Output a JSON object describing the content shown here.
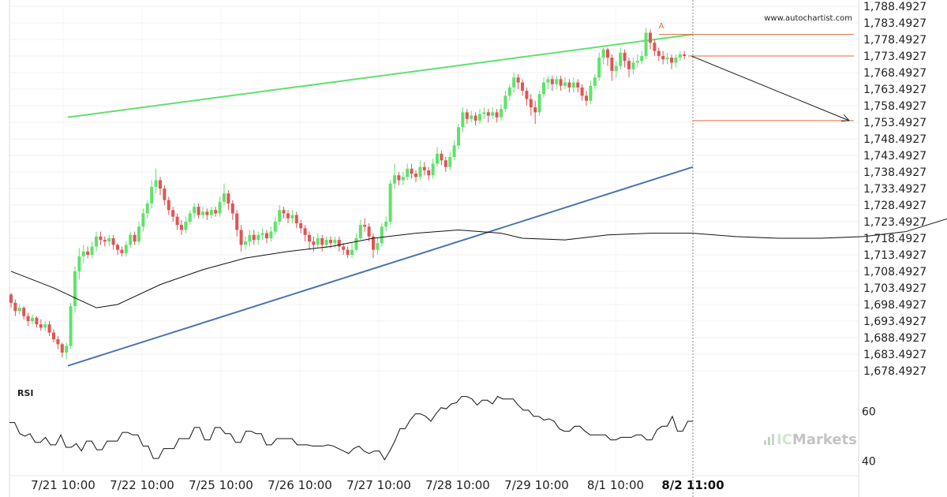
{
  "watermark": "www.autochartist.com",
  "brand": {
    "prefix": "IC",
    "suffix": "Markets"
  },
  "rsi_label": "RSI",
  "chart_data": {
    "type": "candlestick",
    "y_ticks": [
      "1,788.4927",
      "1,783.4927",
      "1,778.4927",
      "1,773.4927",
      "1,768.4927",
      "1,763.4927",
      "1,758.4927",
      "1,753.4927",
      "1,748.4927",
      "1,743.4927",
      "1,738.4927",
      "1,733.4927",
      "1,728.4927",
      "1,723.4927",
      "1,718.4927",
      "1,713.4927",
      "1,708.4927",
      "1,703.4927",
      "1,698.4927",
      "1,693.4927",
      "1,688.4927",
      "1,683.4927",
      "1,678.4927"
    ],
    "ylim": [
      1678.4927,
      1788.4927
    ],
    "x_ticks": [
      "7/21 10:00",
      "7/22 10:00",
      "7/25 10:00",
      "7/26 10:00",
      "7/27 10:00",
      "7/28 10:00",
      "7/29 10:00",
      "8/1 10:00"
    ],
    "x_current": "8/2 11:00",
    "pattern_label": "A",
    "candles": [
      [
        1701.5,
        1699.0,
        1702.0,
        1697.5
      ],
      [
        1699.0,
        1696.5,
        1700.0,
        1695.0
      ],
      [
        1696.5,
        1697.5,
        1698.5,
        1695.5
      ],
      [
        1697.5,
        1695.0,
        1698.0,
        1694.0
      ],
      [
        1695.0,
        1693.5,
        1696.0,
        1692.0
      ],
      [
        1693.5,
        1694.5,
        1695.5,
        1692.5
      ],
      [
        1694.5,
        1692.5,
        1695.0,
        1691.5
      ],
      [
        1692.5,
        1691.5,
        1694.0,
        1690.5
      ],
      [
        1691.5,
        1692.5,
        1693.5,
        1690.5
      ],
      [
        1692.5,
        1690.0,
        1693.5,
        1689.0
      ],
      [
        1690.0,
        1688.0,
        1691.0,
        1687.0
      ],
      [
        1688.0,
        1686.5,
        1689.0,
        1685.0
      ],
      [
        1686.5,
        1684.0,
        1687.0,
        1682.5
      ],
      [
        1684.0,
        1686.0,
        1687.0,
        1682.0
      ],
      [
        1686.0,
        1698.0,
        1699.0,
        1685.0
      ],
      [
        1698.0,
        1708.5,
        1710.0,
        1696.0
      ],
      [
        1708.5,
        1713.0,
        1715.5,
        1706.0
      ],
      [
        1713.0,
        1714.5,
        1716.5,
        1711.0
      ],
      [
        1714.5,
        1713.5,
        1716.0,
        1712.5
      ],
      [
        1713.5,
        1716.0,
        1717.5,
        1712.5
      ],
      [
        1716.0,
        1719.0,
        1720.5,
        1714.5
      ],
      [
        1719.0,
        1718.0,
        1720.5,
        1716.5
      ],
      [
        1718.0,
        1717.5,
        1719.0,
        1716.0
      ],
      [
        1717.5,
        1718.5,
        1719.5,
        1716.0
      ],
      [
        1718.5,
        1716.5,
        1719.5,
        1715.0
      ],
      [
        1716.5,
        1715.0,
        1717.0,
        1713.5
      ],
      [
        1715.0,
        1714.0,
        1716.0,
        1713.0
      ],
      [
        1714.0,
        1716.5,
        1717.5,
        1713.0
      ],
      [
        1716.5,
        1719.5,
        1720.5,
        1715.5
      ],
      [
        1719.5,
        1717.5,
        1720.5,
        1716.5
      ],
      [
        1717.5,
        1722.0,
        1723.5,
        1716.5
      ],
      [
        1722.0,
        1726.0,
        1727.5,
        1720.5
      ],
      [
        1726.0,
        1729.0,
        1730.0,
        1724.5
      ],
      [
        1729.0,
        1734.0,
        1736.0,
        1727.5
      ],
      [
        1734.0,
        1736.0,
        1739.5,
        1732.0
      ],
      [
        1736.0,
        1733.5,
        1737.0,
        1731.5
      ],
      [
        1733.5,
        1730.0,
        1734.5,
        1728.5
      ],
      [
        1730.0,
        1727.0,
        1731.0,
        1725.5
      ],
      [
        1727.0,
        1725.0,
        1728.0,
        1723.5
      ],
      [
        1725.0,
        1722.5,
        1726.0,
        1721.0
      ],
      [
        1722.5,
        1721.0,
        1724.0,
        1719.5
      ],
      [
        1721.0,
        1723.5,
        1725.0,
        1720.0
      ],
      [
        1723.5,
        1726.0,
        1727.0,
        1722.5
      ],
      [
        1726.0,
        1728.0,
        1729.0,
        1724.5
      ],
      [
        1728.0,
        1725.5,
        1729.0,
        1724.5
      ],
      [
        1725.5,
        1726.5,
        1728.0,
        1724.5
      ],
      [
        1726.5,
        1725.5,
        1727.5,
        1724.0
      ],
      [
        1725.5,
        1727.0,
        1728.0,
        1724.5
      ],
      [
        1727.0,
        1726.0,
        1728.0,
        1725.0
      ],
      [
        1726.0,
        1729.5,
        1731.0,
        1725.0
      ],
      [
        1729.5,
        1732.0,
        1735.0,
        1728.5
      ],
      [
        1732.0,
        1729.0,
        1733.0,
        1727.0
      ],
      [
        1729.0,
        1726.0,
        1730.0,
        1724.0
      ],
      [
        1726.0,
        1721.0,
        1727.0,
        1719.0
      ],
      [
        1721.0,
        1716.5,
        1722.5,
        1714.5
      ],
      [
        1716.5,
        1717.5,
        1719.0,
        1715.0
      ],
      [
        1717.5,
        1719.5,
        1721.0,
        1716.0
      ],
      [
        1719.5,
        1718.0,
        1721.0,
        1716.5
      ],
      [
        1718.0,
        1719.5,
        1720.5,
        1716.5
      ],
      [
        1719.5,
        1720.0,
        1721.5,
        1718.0
      ],
      [
        1720.0,
        1718.5,
        1721.0,
        1717.0
      ],
      [
        1718.5,
        1720.5,
        1722.0,
        1717.5
      ],
      [
        1720.5,
        1723.5,
        1725.0,
        1719.5
      ],
      [
        1723.5,
        1727.0,
        1728.5,
        1722.5
      ],
      [
        1727.0,
        1726.0,
        1728.0,
        1724.5
      ],
      [
        1726.0,
        1724.5,
        1727.0,
        1723.0
      ],
      [
        1724.5,
        1725.5,
        1727.0,
        1723.0
      ],
      [
        1725.5,
        1723.0,
        1726.5,
        1721.5
      ],
      [
        1723.0,
        1721.5,
        1724.0,
        1720.0
      ],
      [
        1721.5,
        1719.5,
        1722.5,
        1717.5
      ],
      [
        1719.5,
        1717.5,
        1720.5,
        1715.0
      ],
      [
        1717.5,
        1716.5,
        1719.0,
        1714.5
      ],
      [
        1716.5,
        1718.5,
        1720.0,
        1715.5
      ],
      [
        1718.5,
        1716.5,
        1719.5,
        1714.5
      ],
      [
        1716.5,
        1718.0,
        1719.0,
        1715.5
      ],
      [
        1718.0,
        1717.0,
        1719.0,
        1715.5
      ],
      [
        1717.0,
        1718.0,
        1719.0,
        1715.5
      ],
      [
        1718.0,
        1716.0,
        1719.0,
        1714.5
      ],
      [
        1716.0,
        1715.0,
        1717.0,
        1713.5
      ],
      [
        1715.0,
        1713.5,
        1716.0,
        1712.5
      ],
      [
        1713.5,
        1715.0,
        1717.0,
        1712.5
      ],
      [
        1715.0,
        1718.5,
        1720.0,
        1714.5
      ],
      [
        1718.5,
        1722.5,
        1724.0,
        1718.0
      ],
      [
        1722.5,
        1722.0,
        1724.5,
        1720.5
      ],
      [
        1722.0,
        1719.0,
        1723.0,
        1717.5
      ],
      [
        1719.0,
        1715.0,
        1720.0,
        1712.5
      ],
      [
        1715.0,
        1717.0,
        1718.5,
        1713.5
      ],
      [
        1717.0,
        1722.0,
        1723.0,
        1716.0
      ],
      [
        1722.0,
        1723.5,
        1725.0,
        1720.5
      ],
      [
        1723.5,
        1735.0,
        1736.0,
        1722.5
      ],
      [
        1735.0,
        1737.5,
        1741.0,
        1733.5
      ],
      [
        1737.5,
        1736.0,
        1738.5,
        1734.5
      ],
      [
        1736.0,
        1737.0,
        1738.5,
        1734.5
      ],
      [
        1737.0,
        1739.5,
        1741.0,
        1736.0
      ],
      [
        1739.5,
        1738.0,
        1741.0,
        1736.5
      ],
      [
        1738.0,
        1737.0,
        1739.0,
        1735.5
      ],
      [
        1737.0,
        1740.0,
        1742.0,
        1736.0
      ],
      [
        1740.0,
        1739.0,
        1741.5,
        1737.5
      ],
      [
        1739.0,
        1737.5,
        1740.0,
        1736.0
      ],
      [
        1737.5,
        1741.0,
        1742.5,
        1736.5
      ],
      [
        1741.0,
        1744.0,
        1746.0,
        1740.0
      ],
      [
        1744.0,
        1742.0,
        1745.0,
        1740.5
      ],
      [
        1742.0,
        1740.0,
        1743.0,
        1738.5
      ],
      [
        1740.0,
        1743.0,
        1744.5,
        1739.0
      ],
      [
        1743.0,
        1746.5,
        1748.0,
        1742.0
      ],
      [
        1746.5,
        1752.0,
        1753.0,
        1745.5
      ],
      [
        1752.0,
        1756.5,
        1758.0,
        1750.5
      ],
      [
        1756.5,
        1754.5,
        1757.5,
        1753.0
      ],
      [
        1754.5,
        1755.5,
        1757.0,
        1753.5
      ],
      [
        1755.5,
        1754.0,
        1756.5,
        1752.5
      ],
      [
        1754.0,
        1756.0,
        1757.5,
        1753.0
      ],
      [
        1756.0,
        1756.5,
        1758.0,
        1754.5
      ],
      [
        1756.5,
        1755.5,
        1757.5,
        1753.5
      ],
      [
        1755.5,
        1756.5,
        1758.0,
        1754.5
      ],
      [
        1756.5,
        1755.0,
        1757.5,
        1753.5
      ],
      [
        1755.0,
        1757.5,
        1759.0,
        1754.0
      ],
      [
        1757.5,
        1761.5,
        1763.0,
        1756.5
      ],
      [
        1761.5,
        1764.0,
        1765.0,
        1760.0
      ],
      [
        1764.0,
        1767.0,
        1768.5,
        1762.5
      ],
      [
        1767.0,
        1765.5,
        1768.0,
        1763.5
      ],
      [
        1765.5,
        1763.0,
        1766.5,
        1761.5
      ],
      [
        1763.0,
        1760.5,
        1764.0,
        1758.5
      ],
      [
        1760.5,
        1758.0,
        1762.0,
        1755.5
      ],
      [
        1758.0,
        1756.5,
        1760.0,
        1753.0
      ],
      [
        1756.5,
        1762.0,
        1763.0,
        1755.5
      ],
      [
        1762.0,
        1765.5,
        1767.0,
        1761.0
      ],
      [
        1765.5,
        1766.5,
        1767.5,
        1763.5
      ],
      [
        1766.5,
        1765.0,
        1767.5,
        1763.0
      ],
      [
        1765.0,
        1766.5,
        1767.5,
        1763.5
      ],
      [
        1766.5,
        1764.5,
        1767.5,
        1763.0
      ],
      [
        1764.5,
        1765.5,
        1767.0,
        1763.5
      ],
      [
        1765.5,
        1764.0,
        1766.5,
        1762.5
      ],
      [
        1764.0,
        1765.5,
        1767.0,
        1762.5
      ],
      [
        1765.5,
        1764.0,
        1766.5,
        1762.5
      ],
      [
        1764.0,
        1761.5,
        1765.0,
        1760.0
      ],
      [
        1761.5,
        1760.0,
        1763.0,
        1758.5
      ],
      [
        1760.0,
        1764.5,
        1766.0,
        1759.0
      ],
      [
        1764.5,
        1767.0,
        1768.0,
        1763.5
      ],
      [
        1767.0,
        1773.0,
        1774.5,
        1766.0
      ],
      [
        1773.0,
        1775.5,
        1776.0,
        1771.0
      ],
      [
        1775.5,
        1773.0,
        1776.0,
        1770.5
      ],
      [
        1773.0,
        1769.0,
        1774.0,
        1766.0
      ],
      [
        1769.0,
        1770.5,
        1772.0,
        1767.0
      ],
      [
        1770.5,
        1774.5,
        1776.0,
        1769.5
      ],
      [
        1774.5,
        1772.0,
        1775.5,
        1770.0
      ],
      [
        1772.0,
        1769.5,
        1773.0,
        1767.0
      ],
      [
        1769.5,
        1771.5,
        1773.0,
        1768.0
      ],
      [
        1771.5,
        1772.0,
        1774.0,
        1770.0
      ],
      [
        1772.0,
        1773.5,
        1775.0,
        1771.0
      ],
      [
        1773.5,
        1780.5,
        1782.0,
        1772.5
      ],
      [
        1780.5,
        1777.5,
        1781.5,
        1775.5
      ],
      [
        1777.5,
        1775.0,
        1778.5,
        1773.5
      ],
      [
        1775.0,
        1773.5,
        1776.0,
        1772.0
      ],
      [
        1773.5,
        1772.5,
        1775.0,
        1771.0
      ],
      [
        1772.5,
        1773.0,
        1774.5,
        1771.0
      ],
      [
        1773.0,
        1771.5,
        1774.0,
        1769.5
      ],
      [
        1771.5,
        1773.0,
        1774.0,
        1770.0
      ],
      [
        1773.0,
        1774.0,
        1775.0,
        1772.0
      ],
      [
        1774.0,
        1773.5,
        1775.0,
        1772.5
      ]
    ],
    "moving_average": [
      [
        0,
        1708.5
      ],
      [
        10,
        1703.5
      ],
      [
        20,
        1697.5
      ],
      [
        25,
        1698.5
      ],
      [
        35,
        1704.5
      ],
      [
        45,
        1709.0
      ],
      [
        55,
        1712.5
      ],
      [
        65,
        1714.5
      ],
      [
        75,
        1716.0
      ],
      [
        85,
        1718.5
      ],
      [
        95,
        1720.0
      ],
      [
        105,
        1721.0
      ],
      [
        115,
        1720.0
      ],
      [
        120,
        1718.5
      ],
      [
        130,
        1718.0
      ],
      [
        140,
        1719.5
      ],
      [
        150,
        1720.0
      ],
      [
        160,
        1720.0
      ],
      [
        170,
        1719.0
      ],
      [
        180,
        1718.5
      ],
      [
        190,
        1718.5
      ],
      [
        200,
        1719.0
      ],
      [
        210,
        1720.5
      ],
      [
        220,
        1724.5
      ],
      [
        230,
        1729.5
      ],
      [
        240,
        1734.0
      ],
      [
        250,
        1739.5
      ],
      [
        260,
        1744.5
      ],
      [
        270,
        1749.0
      ],
      [
        280,
        1752.0
      ],
      [
        290,
        1755.0
      ],
      [
        300,
        1757.0
      ],
      [
        310,
        1759.0
      ],
      [
        320,
        1761.0
      ],
      [
        330,
        1762.5
      ],
      [
        340,
        1763.0
      ],
      [
        348,
        1764.0
      ],
      [
        355,
        1766.0
      ],
      [
        365,
        1767.5
      ],
      [
        375,
        1769.5
      ],
      [
        382,
        1770.5
      ]
    ],
    "upper_channel": [
      [
        1755.0,
        1780.0
      ]
    ],
    "lower_channel": [
      [
        1680.0,
        1740.0
      ]
    ],
    "resistance_level": 1780.0,
    "current_level": 1773.5,
    "target_level": 1754.0,
    "rsi": {
      "ticks": [
        "60",
        "40"
      ],
      "ylim": [
        35,
        70
      ],
      "values": [
        55.5,
        55.5,
        51,
        50,
        51,
        47.5,
        47.5,
        49.5,
        46.5,
        46.5,
        50.5,
        45.5,
        45.5,
        47,
        44,
        48,
        48,
        44.5,
        44.5,
        48,
        48,
        48,
        51.5,
        51.5,
        50.5,
        50.5,
        46,
        46,
        41,
        41,
        45,
        45,
        45,
        49,
        49,
        49,
        53.5,
        53.5,
        48.5,
        48.5,
        53.5,
        53.5,
        51,
        51,
        47.5,
        47.5,
        52,
        52,
        51,
        51,
        46.5,
        46.5,
        49,
        49,
        49,
        49,
        46.5,
        46.5,
        46.5,
        46,
        46,
        46,
        46.5,
        46,
        45,
        44,
        43,
        45,
        46,
        44,
        43,
        44,
        44,
        40.5,
        44,
        48,
        53,
        53,
        56.5,
        59,
        59,
        58,
        56,
        59,
        61.5,
        61,
        63,
        63.5,
        66,
        66,
        65,
        62.5,
        64.5,
        64.5,
        63,
        66,
        65,
        65,
        65,
        62.5,
        60.5,
        60.5,
        58,
        58,
        56.5,
        57,
        56,
        53,
        52,
        52,
        54,
        54,
        52,
        50.5,
        50.5,
        50.5,
        50.5,
        48.5,
        48.5,
        49.5,
        49.5,
        49.5,
        50.5,
        50.5,
        48.5,
        48.5,
        52.5,
        54,
        54,
        58,
        52,
        52,
        56,
        56
      ]
    }
  }
}
